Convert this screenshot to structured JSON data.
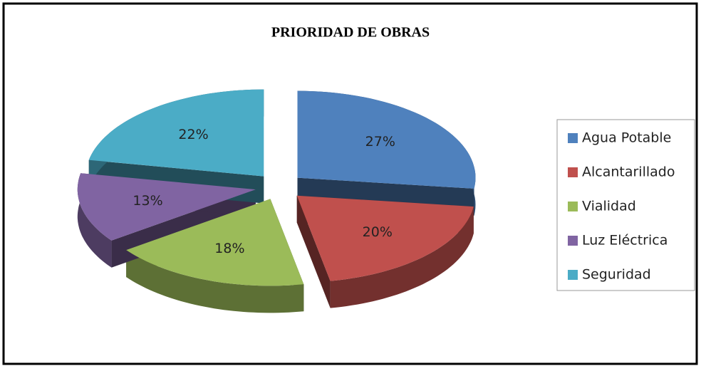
{
  "chart_data": {
    "type": "pie",
    "title": "PRIORIDAD DE OBRAS",
    "categories": [
      "Agua Potable",
      "Alcantarillado",
      "Vialidad",
      "Luz Eléctrica",
      "Seguridad"
    ],
    "values": [
      27,
      20,
      18,
      13,
      22
    ],
    "value_labels": [
      "27%",
      "20%",
      "18%",
      "13%",
      "22%"
    ],
    "colors": [
      "#4f81bd",
      "#c0504d",
      "#9bbb59",
      "#8064a2",
      "#4bacc6"
    ],
    "legend": "right"
  }
}
